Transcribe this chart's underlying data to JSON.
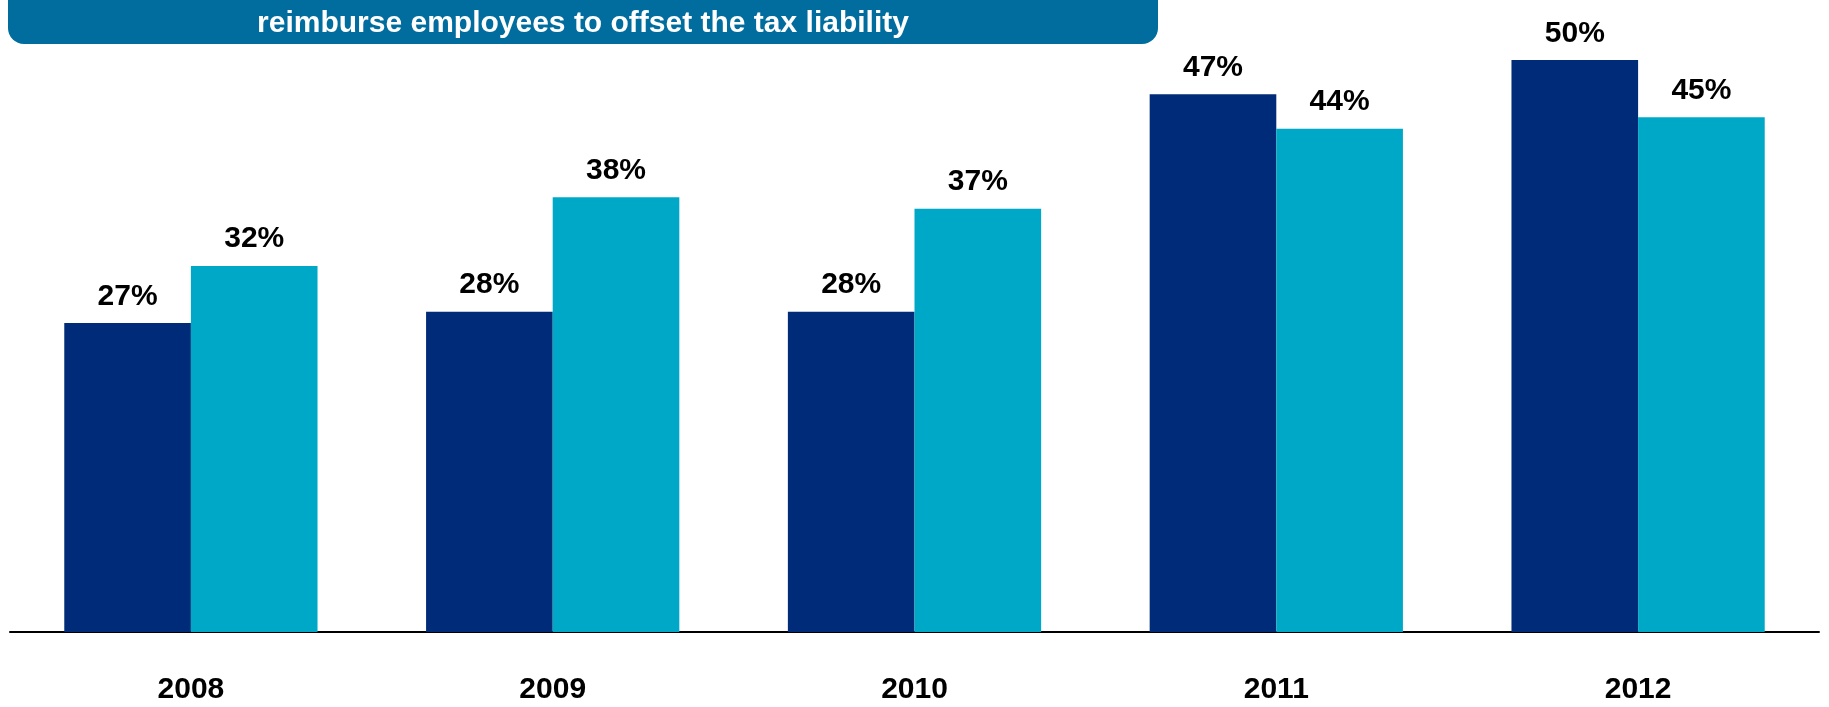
{
  "chart_data": {
    "type": "bar",
    "title": "reimburse employees to offset the tax liability",
    "categories": [
      "2008",
      "2009",
      "2010",
      "2011",
      "2012"
    ],
    "series": [
      {
        "color": "#002b78",
        "values": [
          27,
          28,
          28,
          47,
          50
        ],
        "value_labels": [
          "27%",
          "28%",
          "28%",
          "47%",
          "50%"
        ]
      },
      {
        "color": "#00a8c8",
        "values": [
          32,
          38,
          37,
          44,
          45
        ],
        "value_labels": [
          "32%",
          "38%",
          "37%",
          "44%",
          "45%"
        ]
      }
    ]
  }
}
